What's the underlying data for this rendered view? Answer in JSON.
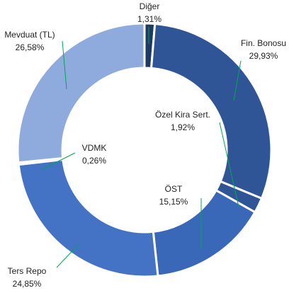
{
  "chart_data": {
    "type": "donut",
    "categories": [
      "Diğer",
      "Fin. Bonosu",
      "Özel Kira Sert.",
      "ÖST",
      "Ters Repo",
      "VDMK",
      "Mevduat (TL)"
    ],
    "values": [
      1.31,
      29.93,
      1.92,
      15.15,
      24.85,
      0.26,
      26.58
    ],
    "value_labels": [
      "1,31%",
      "29,93%",
      "1,92%",
      "15,15%",
      "24,85%",
      "0,26%",
      "26,58%"
    ],
    "colors": [
      "#1f3864",
      "#2f5597",
      "#2f5597",
      "#3a68b8",
      "#4472c4",
      "#b4c7e7",
      "#8faadc"
    ]
  }
}
